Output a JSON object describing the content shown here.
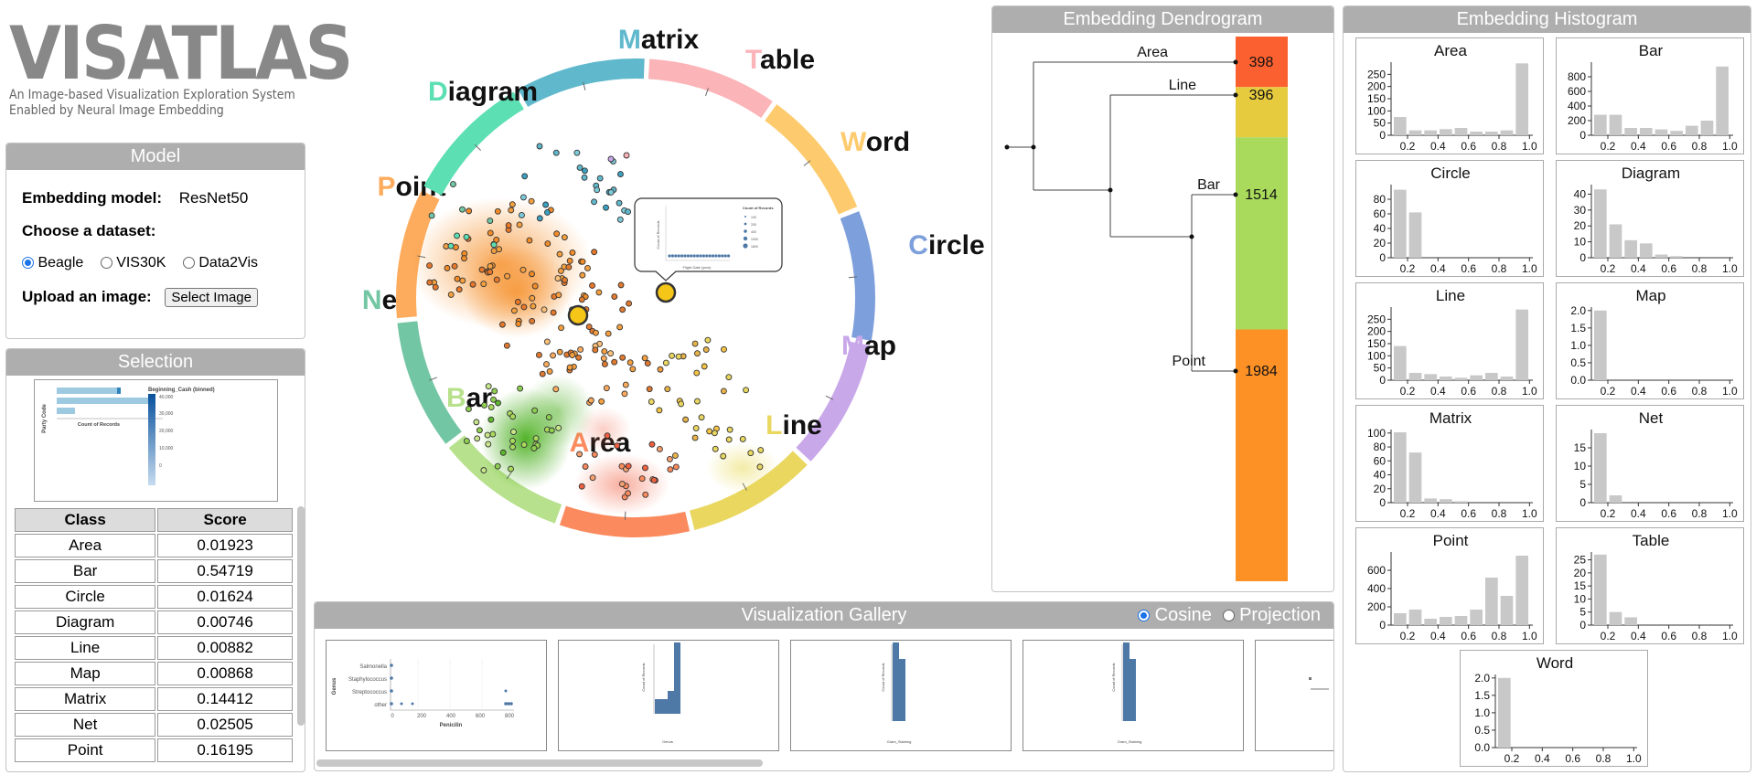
{
  "logo": {
    "title": "VISATLAS",
    "subtitle_line1": "An Image-based Visualization Exploration System",
    "subtitle_line2": "Enabled by Neural Image Embedding"
  },
  "model": {
    "title": "Model",
    "embedding_label": "Embedding model:",
    "embedding_value": "ResNet50",
    "dataset_label": "Choose a dataset:",
    "datasets": [
      "Beagle",
      "VIS30K",
      "Data2Vis"
    ],
    "selected_dataset": "Beagle",
    "upload_label": "Upload an image:",
    "upload_button": "Select Image"
  },
  "selection": {
    "title": "Selection",
    "thumb": {
      "legend_title": "Beginning_Cash (binned)",
      "legend_ticks": [
        "40,000",
        "30,000",
        "20,000",
        "10,000",
        "0"
      ],
      "ylabel": "Party Code",
      "xlabel": "Count of Records",
      "ticks": [
        "0",
        "5",
        "10",
        "15",
        "20",
        "25",
        "30",
        "35"
      ]
    },
    "table": {
      "headers": [
        "Class",
        "Score"
      ],
      "rows": [
        [
          "Area",
          "0.01923"
        ],
        [
          "Bar",
          "0.54719"
        ],
        [
          "Circle",
          "0.01624"
        ],
        [
          "Diagram",
          "0.00746"
        ],
        [
          "Line",
          "0.00882"
        ],
        [
          "Map",
          "0.00868"
        ],
        [
          "Matrix",
          "0.14412"
        ],
        [
          "Net",
          "0.02505"
        ],
        [
          "Point",
          "0.16195"
        ]
      ]
    }
  },
  "atlas": {
    "classes": [
      {
        "name": "Matrix",
        "color": "#5fb8cc"
      },
      {
        "name": "Table",
        "color": "#fbb4b8"
      },
      {
        "name": "Word",
        "color": "#fdcb6e"
      },
      {
        "name": "Circle",
        "color": "#7d9fdb"
      },
      {
        "name": "Map",
        "color": "#c9a8ea"
      },
      {
        "name": "Line",
        "color": "#e9d760"
      },
      {
        "name": "Area",
        "color": "#fb8b5e"
      },
      {
        "name": "Bar",
        "color": "#b7e18c"
      },
      {
        "name": "Net",
        "color": "#73c6a4"
      },
      {
        "name": "Point",
        "color": "#fdac5e"
      },
      {
        "name": "Diagram",
        "color": "#5cdfb3"
      }
    ],
    "tooltip": {
      "ylabel": "Count of Records",
      "xlabel": "Flight Date (year)",
      "legend_title": "Count of Records",
      "legend": [
        "100",
        "200",
        "400",
        "1000",
        "1600"
      ]
    }
  },
  "dendrogram": {
    "title": "Embedding Dendrogram",
    "clusters": [
      {
        "name": "Area",
        "count": "398",
        "color": "#fb6130"
      },
      {
        "name": "Line",
        "count": "396",
        "color": "#e7cb3f"
      },
      {
        "name": "Bar",
        "count": "1514",
        "color": "#a9da5c"
      },
      {
        "name": "Point",
        "count": "1984",
        "color": "#fd9126"
      }
    ]
  },
  "gallery": {
    "title": "Visualization Gallery",
    "modes": [
      "Cosine",
      "Projection"
    ],
    "selected_mode": "Cosine",
    "card1": {
      "ylabel": "Genus",
      "xlabel": "Penicilin",
      "cats": [
        "Salmonella",
        "Staphylococcus",
        "Streptococcus",
        "other"
      ],
      "ticks": [
        "0",
        "200",
        "400",
        "600",
        "800"
      ]
    },
    "card2": {
      "xlabel": "Genus",
      "ylabel": "Count of Records"
    },
    "card3": {
      "xlabel": "Gram_Staining",
      "ylabel": "Count of Records"
    },
    "card4": {
      "xlabel": "Gram_Staining",
      "ylabel": "Count of Records"
    }
  },
  "histogram": {
    "title": "Embedding Histogram",
    "x_ticks": [
      "0.2",
      "0.4",
      "0.6",
      "0.8",
      "1.0"
    ],
    "charts": [
      {
        "name": "Area",
        "ylim": [
          0,
          300
        ],
        "yticks": [
          "0",
          "50",
          "100",
          "150",
          "200",
          "250"
        ],
        "values": [
          75,
          20,
          20,
          25,
          30,
          15,
          15,
          20,
          295
        ]
      },
      {
        "name": "Bar",
        "ylim": [
          0,
          1000
        ],
        "yticks": [
          "0",
          "200",
          "400",
          "600",
          "800"
        ],
        "values": [
          280,
          280,
          100,
          100,
          80,
          60,
          130,
          200,
          940
        ]
      },
      {
        "name": "Circle",
        "ylim": [
          0,
          100
        ],
        "yticks": [
          "0",
          "20",
          "40",
          "60",
          "80"
        ],
        "values": [
          93,
          62,
          0,
          0,
          0,
          0,
          0,
          0,
          0
        ]
      },
      {
        "name": "Diagram",
        "ylim": [
          0,
          46
        ],
        "yticks": [
          "0",
          "10",
          "20",
          "30",
          "40"
        ],
        "values": [
          43,
          21,
          11,
          9,
          2,
          1,
          0,
          0,
          0
        ]
      },
      {
        "name": "Line",
        "ylim": [
          0,
          300
        ],
        "yticks": [
          "0",
          "50",
          "100",
          "150",
          "200",
          "250"
        ],
        "values": [
          140,
          30,
          25,
          15,
          10,
          20,
          30,
          15,
          290
        ]
      },
      {
        "name": "Map",
        "ylim": [
          0,
          2.1
        ],
        "yticks": [
          "0.0",
          "0.5",
          "1.0",
          "1.5",
          "2.0"
        ],
        "values": [
          2,
          0,
          0,
          0,
          0,
          0,
          0,
          0,
          0
        ]
      },
      {
        "name": "Matrix",
        "ylim": [
          0,
          105
        ],
        "yticks": [
          "0",
          "20",
          "40",
          "60",
          "80",
          "100"
        ],
        "values": [
          101,
          72,
          6,
          5,
          2,
          0,
          0,
          0,
          0
        ]
      },
      {
        "name": "Net",
        "ylim": [
          0,
          20
        ],
        "yticks": [
          "0",
          "5",
          "10",
          "15"
        ],
        "values": [
          19,
          2,
          0,
          0,
          0,
          0,
          0,
          0,
          0
        ]
      },
      {
        "name": "Point",
        "ylim": [
          0,
          800
        ],
        "yticks": [
          "0",
          "200",
          "400",
          "600"
        ],
        "values": [
          130,
          170,
          70,
          90,
          100,
          170,
          520,
          320,
          760
        ]
      },
      {
        "name": "Table",
        "ylim": [
          0,
          28
        ],
        "yticks": [
          "0",
          "5",
          "10",
          "15",
          "20",
          "25"
        ],
        "values": [
          27,
          5,
          3,
          0,
          0,
          0,
          0,
          0,
          0
        ]
      },
      {
        "name": "Word",
        "ylim": [
          0,
          2.1
        ],
        "yticks": [
          "0.0",
          "0.5",
          "1.0",
          "1.5",
          "2.0"
        ],
        "values": [
          2,
          0,
          0,
          0,
          0,
          0,
          0,
          0,
          0
        ]
      }
    ]
  }
}
